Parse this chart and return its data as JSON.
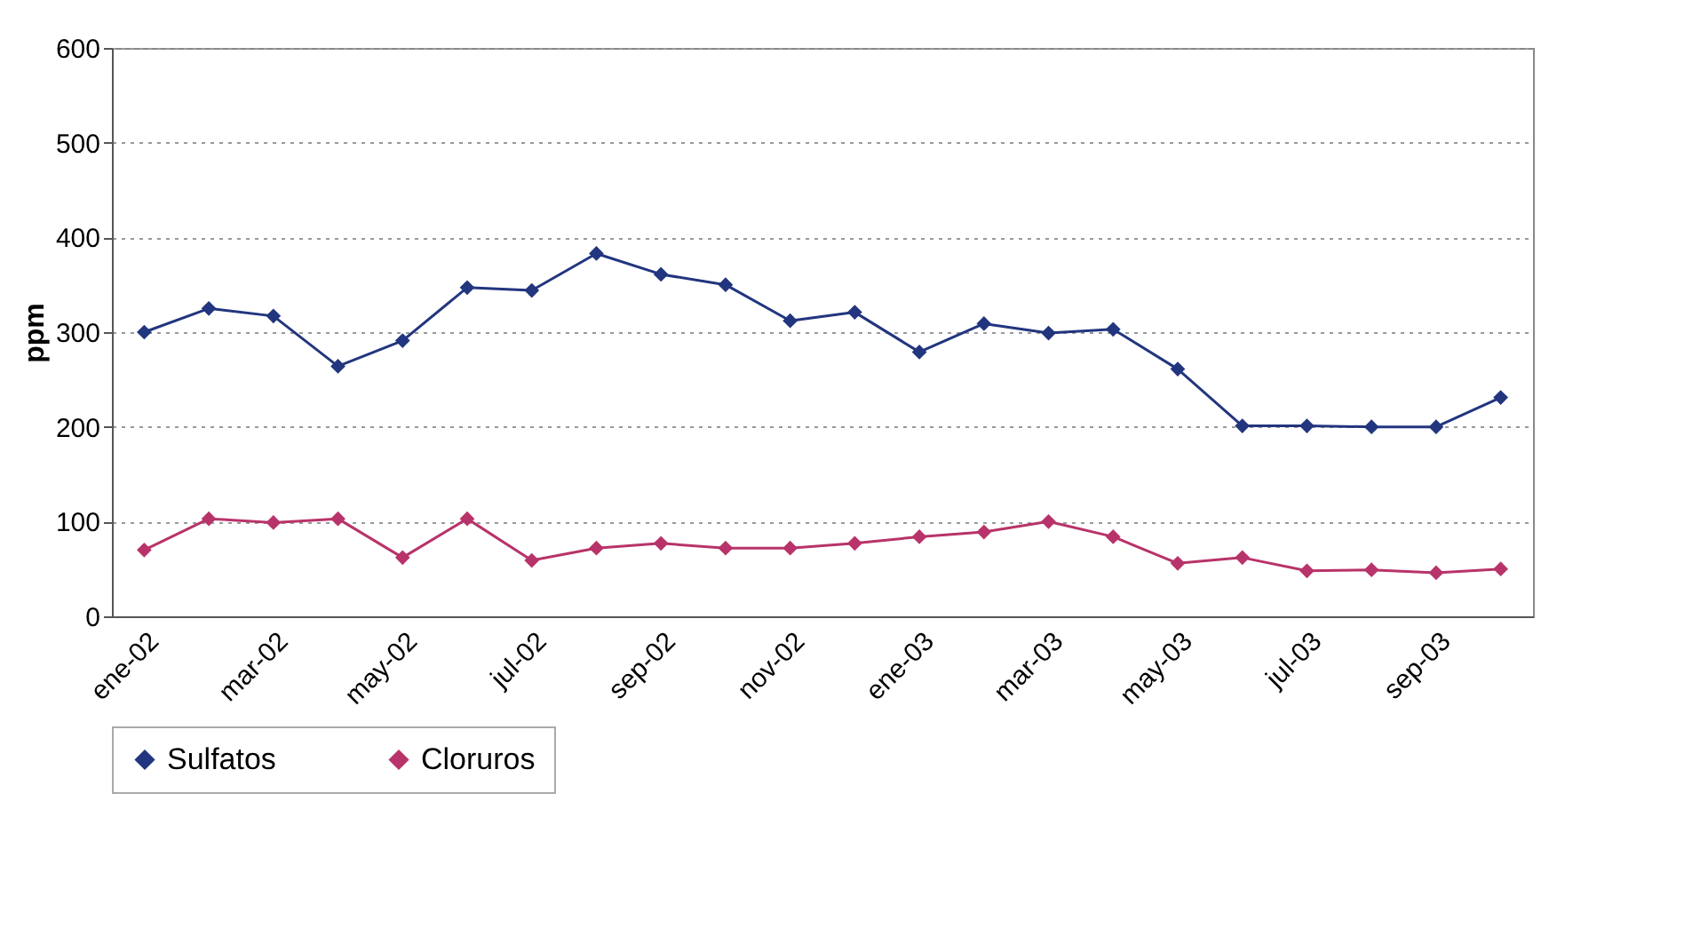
{
  "chart_data": {
    "type": "line",
    "ylabel": "ppm",
    "categories": [
      "ene-02",
      null,
      "mar-02",
      null,
      "may-02",
      null,
      "jul-02",
      null,
      "sep-02",
      null,
      "nov-02",
      null,
      "ene-03",
      null,
      "mar-03",
      null,
      "may-03",
      null,
      "jul-03",
      null,
      "sep-03",
      null
    ],
    "series": [
      {
        "name": "Sulfatos",
        "color": "#22357f",
        "values": [
          300,
          325,
          317,
          264,
          291,
          347,
          344,
          383,
          361,
          350,
          312,
          321,
          279,
          309,
          299,
          303,
          261,
          201,
          201,
          200,
          200,
          231
        ]
      },
      {
        "name": "Cloruros",
        "color": "#b8336a",
        "values": [
          70,
          103,
          99,
          103,
          62,
          103,
          59,
          72,
          77,
          72,
          72,
          77,
          84,
          89,
          100,
          84,
          56,
          62,
          48,
          49,
          46,
          50
        ]
      }
    ],
    "ylim": [
      0,
      600
    ],
    "yticks": [
      0,
      100,
      200,
      300,
      400,
      500,
      600
    ],
    "grid": "y",
    "legend": "bottom",
    "marker": "diamond",
    "line_style": "solid"
  }
}
